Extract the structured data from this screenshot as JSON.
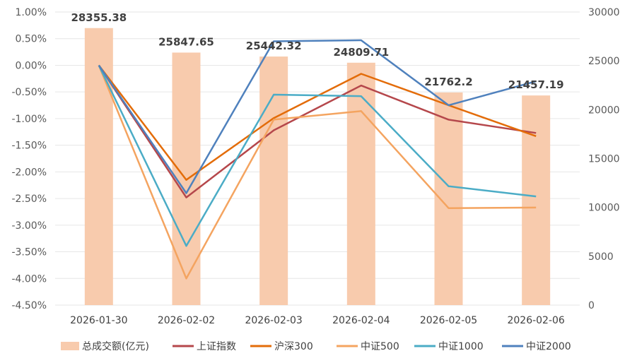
{
  "chart_data": {
    "type": "bar+line",
    "categories": [
      "2026-01-30",
      "2026-02-02",
      "2026-02-03",
      "2026-02-04",
      "2026-02-05",
      "2026-02-06"
    ],
    "bar_series": {
      "name": "总成交额(亿元)",
      "values": [
        28355.38,
        25847.65,
        25442.32,
        24809.71,
        21762.2,
        21457.19
      ],
      "labels": [
        "28355.38",
        "25847.65",
        "25442.32",
        "24809.71",
        "21762.2",
        "21457.19"
      ],
      "color": "#F8CBAD",
      "axis": "right"
    },
    "line_series": [
      {
        "name": "上证指数",
        "values": [
          0.0,
          -2.48,
          -1.22,
          -0.38,
          -1.02,
          -1.27
        ],
        "color": "#B5474B"
      },
      {
        "name": "沪深300",
        "values": [
          0.0,
          -2.15,
          -0.99,
          -0.16,
          -0.75,
          -1.33
        ],
        "color": "#E36C09"
      },
      {
        "name": "中证500",
        "values": [
          0.0,
          -4.0,
          -1.02,
          -0.86,
          -2.68,
          -2.67
        ],
        "color": "#F4A460"
      },
      {
        "name": "中证1000",
        "values": [
          0.0,
          -3.39,
          -0.55,
          -0.58,
          -2.27,
          -2.46
        ],
        "color": "#4BACC6"
      },
      {
        "name": "中证2000",
        "values": [
          0.0,
          -2.4,
          0.45,
          0.47,
          -0.75,
          -0.3
        ],
        "color": "#4F81BD"
      }
    ],
    "y_left": {
      "min": -4.5,
      "max": 1.0,
      "step": 0.5,
      "ticks": [
        "1.00%",
        "0.50%",
        "0.00%",
        "-0.50%",
        "-1.00%",
        "-1.50%",
        "-2.00%",
        "-2.50%",
        "-3.00%",
        "-3.50%",
        "-4.00%",
        "-4.50%"
      ]
    },
    "y_right": {
      "min": 0,
      "max": 30000,
      "step": 5000,
      "ticks": [
        "30000",
        "25000",
        "20000",
        "15000",
        "10000",
        "5000",
        "0"
      ]
    },
    "grid": true,
    "legend_position": "bottom"
  }
}
